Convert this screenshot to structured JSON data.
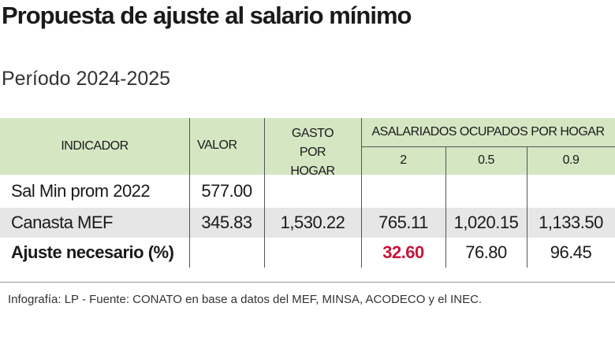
{
  "header": {
    "title": "Propuesta de ajuste al salario mínimo",
    "subtitle": "Período 2024-2025"
  },
  "table": {
    "columns": [
      "INDICADOR",
      "VALOR",
      "GASTO POR HOGAR",
      "ASALARIADOS OCUPADOS POR HOGAR"
    ],
    "subcolumns": [
      "2",
      "0.5",
      "0.9"
    ],
    "rows": [
      {
        "label": "Sal Min prom 2022",
        "valor": "577.00"
      },
      {
        "label": "Canasta MEF",
        "valor": "345.83",
        "gasto": "1,530.22",
        "asalariados": [
          "765.11",
          "1,020.15",
          "1,133.50"
        ]
      },
      {
        "label": "Ajuste necesario (%)",
        "asalariados": [
          "32.60",
          "76.80",
          "96.45"
        ]
      }
    ]
  },
  "footer": {
    "source": "Infografía: LP - Fuente: CONATO en base a datos del MEF, MINSA, ACODECO y el INEC."
  }
}
